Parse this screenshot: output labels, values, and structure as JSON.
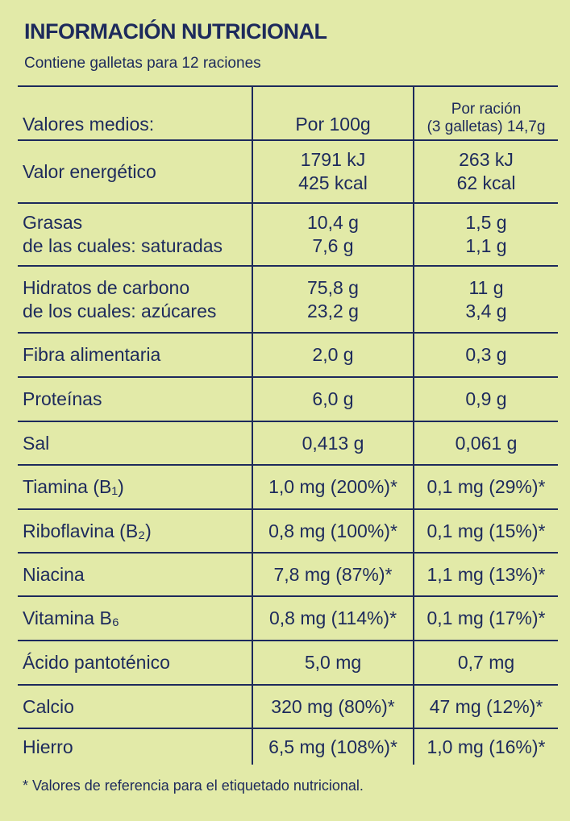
{
  "header": {
    "title": "INFORMACIÓN NUTRICIONAL",
    "subtitle": "Contiene galletas para 12 raciones"
  },
  "table": {
    "columns": [
      [
        "Valores medios:"
      ],
      [
        "Por 100g"
      ],
      [
        "Por ración",
        "(3 galletas) 14,7g"
      ]
    ],
    "rows": [
      [
        [
          "Valor energético"
        ],
        [
          "1791 kJ",
          "425 kcal"
        ],
        [
          "263 kJ",
          "62 kcal"
        ]
      ],
      [
        [
          "Grasas",
          "de las cuales: saturadas"
        ],
        [
          "10,4 g",
          "7,6 g"
        ],
        [
          "1,5 g",
          "1,1 g"
        ]
      ],
      [
        [
          "Hidratos de carbono",
          "de los cuales: azúcares"
        ],
        [
          "75,8 g",
          "23,2 g"
        ],
        [
          "11 g",
          "3,4 g"
        ]
      ],
      [
        [
          "Fibra alimentaria"
        ],
        [
          "2,0 g"
        ],
        [
          "0,3 g"
        ]
      ],
      [
        [
          "Proteínas"
        ],
        [
          "6,0 g"
        ],
        [
          "0,9 g"
        ]
      ],
      [
        [
          "Sal"
        ],
        [
          "0,413 g"
        ],
        [
          "0,061 g"
        ]
      ],
      [
        [
          "Tiamina (B₁)"
        ],
        [
          "1,0 mg (200%)*"
        ],
        [
          "0,1 mg (29%)*"
        ]
      ],
      [
        [
          "Riboflavina (B₂)"
        ],
        [
          "0,8 mg (100%)*"
        ],
        [
          "0,1 mg (15%)*"
        ]
      ],
      [
        [
          "Niacina"
        ],
        [
          "7,8 mg (87%)*"
        ],
        [
          "1,1 mg (13%)*"
        ]
      ],
      [
        [
          "Vitamina B₆"
        ],
        [
          "0,8 mg (114%)*"
        ],
        [
          "0,1 mg (17%)*"
        ]
      ],
      [
        [
          "Ácido pantoténico"
        ],
        [
          "5,0 mg"
        ],
        [
          "0,7 mg"
        ]
      ],
      [
        [
          "Calcio"
        ],
        [
          "320 mg (80%)*"
        ],
        [
          "47 mg (12%)*"
        ]
      ],
      [
        [
          "Hierro"
        ],
        [
          "6,5 mg (108%)*"
        ],
        [
          "1,0 mg (16%)*"
        ]
      ]
    ]
  },
  "footnote": "* Valores de referencia para el etiquetado nutricional."
}
